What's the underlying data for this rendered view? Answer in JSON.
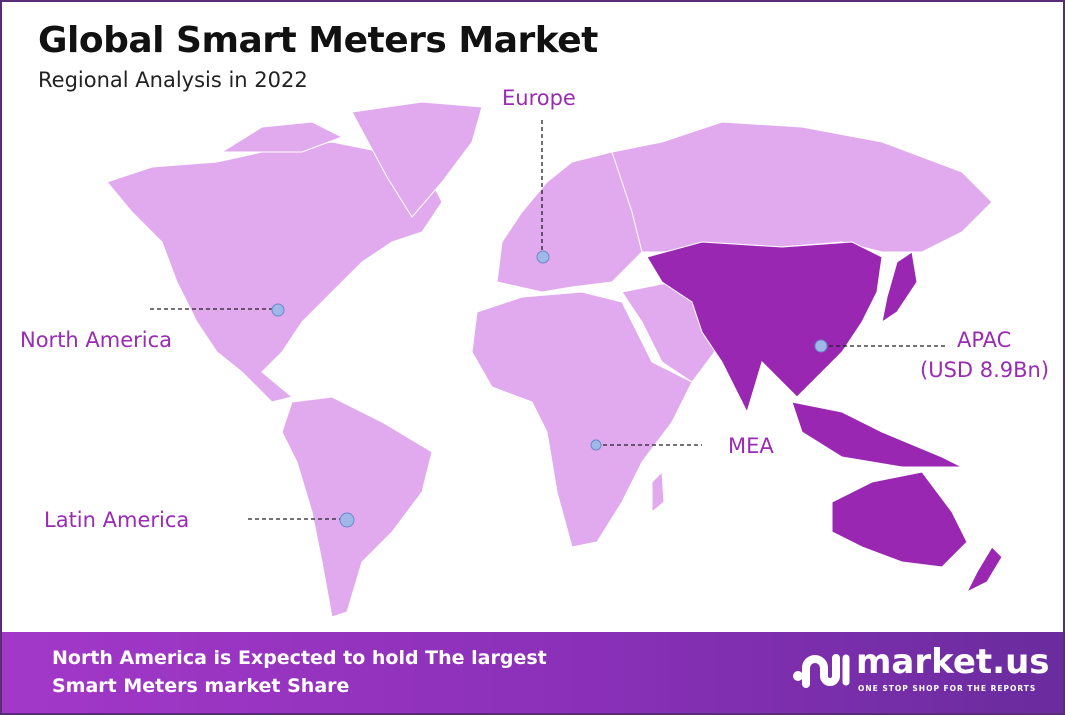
{
  "header": {
    "title": "Global Smart Meters Market",
    "subtitle": "Regional Analysis in 2022"
  },
  "regions": [
    {
      "name": "North America",
      "label": "North America"
    },
    {
      "name": "Europe",
      "label": "Europe"
    },
    {
      "name": "APAC",
      "label": "APAC",
      "value": "(USD 8.9Bn)"
    },
    {
      "name": "MEA",
      "label": "MEA"
    },
    {
      "name": "Latin America",
      "label": "Latin America"
    }
  ],
  "colors": {
    "land": "#e2aaee",
    "highlight": "#9a27b2",
    "label": "#9a2bb4",
    "marker": "#9fb8e8"
  },
  "footer": {
    "line1": "North America is Expected to hold The largest",
    "line2": "Smart Meters market Share"
  },
  "logo": {
    "name": "market.us",
    "tagline": "ONE STOP SHOP FOR THE REPORTS"
  }
}
